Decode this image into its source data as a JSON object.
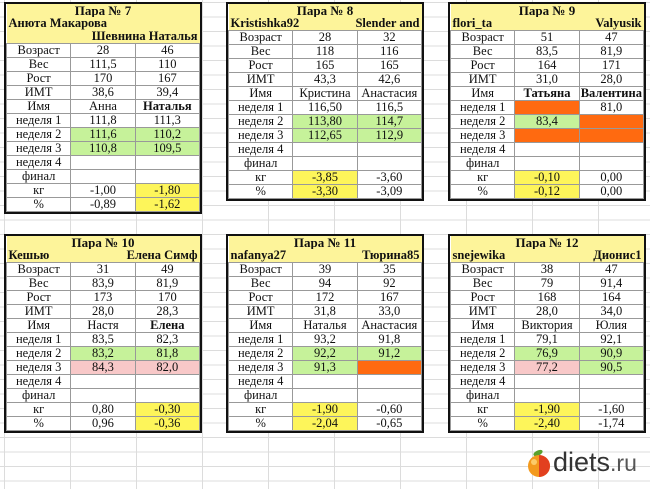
{
  "labels": [
    "Возраст",
    "Вес",
    "Рост",
    "ИМТ",
    "Имя",
    "неделя 1",
    "неделя 2",
    "неделя 3",
    "неделя 4",
    "финал",
    "кг",
    "%"
  ],
  "colors": {
    "g": "#c6f29a",
    "y": "#fdf55a",
    "r": "#f8c8c8",
    "o": "#ff6a10"
  },
  "pairs": [
    {
      "title": "Пара № 7",
      "nick1": "Анюта Макарова",
      "nick2": "Шевнина Наталья",
      "a": [
        "28",
        "111,5",
        "170",
        "38,6",
        "Анна",
        "111,8",
        "111,6",
        "110,8",
        "",
        "",
        "-1,00",
        "-0,89"
      ],
      "b": [
        "46",
        "110",
        "167",
        "39,4",
        "Наталья",
        "111,3",
        "110,2",
        "109,5",
        "",
        "",
        "-1,80",
        "-1,62"
      ],
      "ac": [
        "",
        "",
        "",
        "",
        "",
        "",
        "g",
        "g",
        "",
        "",
        "",
        ""
      ],
      "bc": [
        "",
        "",
        "",
        "",
        "",
        "",
        "g",
        "g",
        "",
        "",
        "y",
        "y"
      ],
      "boldB": true,
      "boldA": false
    },
    {
      "title": "Пара № 8",
      "nick1": "Kristishka92",
      "nick2": "Slender and",
      "a": [
        "28",
        "118",
        "165",
        "43,3",
        "Кристина",
        "116,50",
        "113,80",
        "112,65",
        "",
        "",
        "-3,85",
        "-3,30"
      ],
      "b": [
        "32",
        "116",
        "165",
        "42,6",
        "Анастасия",
        "116,5",
        "114,7",
        "112,9",
        "",
        "",
        "-3,60",
        "-3,09"
      ],
      "ac": [
        "",
        "",
        "",
        "",
        "",
        "",
        "g",
        "g",
        "",
        "",
        "y",
        "y"
      ],
      "bc": [
        "",
        "",
        "",
        "",
        "",
        "",
        "g",
        "g",
        "",
        "",
        "",
        ""
      ],
      "boldA": false,
      "boldB": false
    },
    {
      "title": "Пара № 9",
      "nick1": "flori_ta",
      "nick2": "Valyusik",
      "a": [
        "51",
        "83,5",
        "164",
        "31,0",
        "Татьяна",
        "",
        "83,4",
        "",
        "",
        "",
        "-0,10",
        "-0,12"
      ],
      "b": [
        "47",
        "81,9",
        "171",
        "28,0",
        "Валентина",
        "81,0",
        "",
        "",
        "",
        "",
        "0,00",
        "0,00"
      ],
      "ac": [
        "",
        "",
        "",
        "",
        "",
        "o",
        "g",
        "o",
        "",
        "",
        "y",
        "y"
      ],
      "bc": [
        "",
        "",
        "",
        "",
        "",
        "",
        "o",
        "o",
        "",
        "",
        "",
        ""
      ],
      "boldA": true,
      "boldB": true
    },
    {
      "title": "Пара № 10",
      "nick1": "Кешью",
      "nick2": "Елена Симф",
      "a": [
        "31",
        "83,9",
        "173",
        "28,0",
        "Настя",
        "83,5",
        "83,2",
        "84,3",
        "",
        "",
        "0,80",
        "0,96"
      ],
      "b": [
        "49",
        "81,9",
        "170",
        "28,3",
        "Елена",
        "82,3",
        "81,8",
        "82,0",
        "",
        "",
        "-0,30",
        "-0,36"
      ],
      "ac": [
        "",
        "",
        "",
        "",
        "",
        "",
        "g",
        "r",
        "",
        "",
        "",
        ""
      ],
      "bc": [
        "",
        "",
        "",
        "",
        "",
        "",
        "g",
        "r",
        "",
        "",
        "y",
        "y"
      ],
      "boldA": false,
      "boldB": true
    },
    {
      "title": "Пара № 11",
      "nick1": "nafanya27",
      "nick2": "Тюрина85",
      "a": [
        "39",
        "94",
        "172",
        "31,8",
        "Наталья",
        "93,2",
        "92,2",
        "91,3",
        "",
        "",
        "-1,90",
        "-2,04"
      ],
      "b": [
        "35",
        "92",
        "167",
        "33,0",
        "Анастасия",
        "91,8",
        "91,2",
        "",
        "",
        "",
        "-0,60",
        "-0,65"
      ],
      "ac": [
        "",
        "",
        "",
        "",
        "",
        "",
        "g",
        "g",
        "",
        "",
        "y",
        "y"
      ],
      "bc": [
        "",
        "",
        "",
        "",
        "",
        "",
        "g",
        "o",
        "",
        "",
        "",
        ""
      ],
      "boldA": false,
      "boldB": false
    },
    {
      "title": "Пара № 12",
      "nick1": "snejewika",
      "nick2": "Дионис1",
      "a": [
        "38",
        "79",
        "168",
        "28,0",
        "Виктория",
        "79,1",
        "76,9",
        "77,2",
        "",
        "",
        "-1,90",
        "-2,40"
      ],
      "b": [
        "47",
        "91,4",
        "164",
        "34,0",
        "Юлия",
        "92,1",
        "90,9",
        "90,5",
        "",
        "",
        "-1,60",
        "-1,74"
      ],
      "ac": [
        "",
        "",
        "",
        "",
        "",
        "",
        "g",
        "r",
        "",
        "",
        "y",
        "y"
      ],
      "bc": [
        "",
        "",
        "",
        "",
        "",
        "",
        "g",
        "g",
        "",
        "",
        "",
        ""
      ],
      "boldA": false,
      "boldB": false
    }
  ],
  "logo": {
    "text": "diets",
    "tld": ".ru"
  }
}
